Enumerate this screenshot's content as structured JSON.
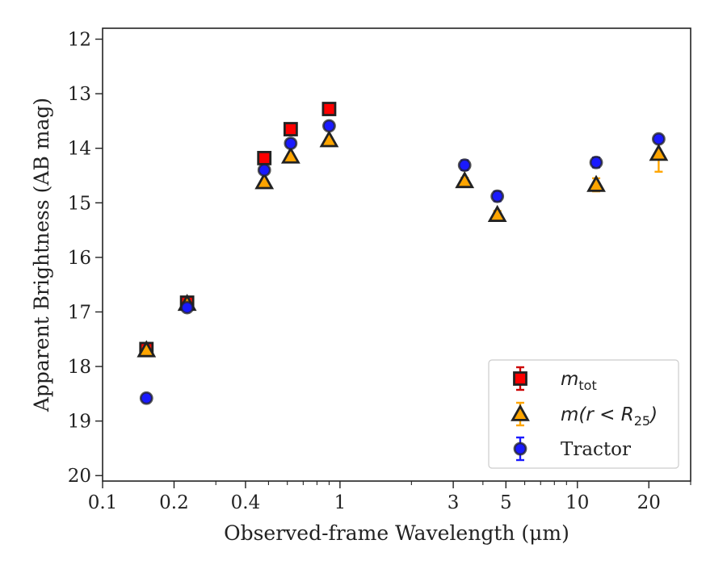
{
  "chart_data": {
    "type": "scatter",
    "xscale": "log",
    "xlim": [
      0.1,
      30
    ],
    "ylim": [
      20.1,
      11.8
    ],
    "y_inverted": true,
    "grid": false,
    "legend_position": "lower right",
    "xlabel": "Observed-frame Wavelength (μm)",
    "ylabel": "Apparent Brightness (AB mag)",
    "xtick_labels": [
      {
        "value": 0.1,
        "label": "0.1"
      },
      {
        "value": 0.2,
        "label": "0.2"
      },
      {
        "value": 0.4,
        "label": "0.4"
      },
      {
        "value": 1,
        "label": "1"
      },
      {
        "value": 3,
        "label": "3"
      },
      {
        "value": 5,
        "label": "5"
      },
      {
        "value": 10,
        "label": "10"
      },
      {
        "value": 20,
        "label": "20"
      }
    ],
    "ytick_labels": [
      {
        "value": 12,
        "label": "12"
      },
      {
        "value": 13,
        "label": "13"
      },
      {
        "value": 14,
        "label": "14"
      },
      {
        "value": 15,
        "label": "15"
      },
      {
        "value": 16,
        "label": "16"
      },
      {
        "value": 17,
        "label": "17"
      },
      {
        "value": 18,
        "label": "18"
      },
      {
        "value": 19,
        "label": "19"
      },
      {
        "value": 20,
        "label": "20"
      }
    ],
    "series": [
      {
        "name": "m_tot",
        "legend_main": "m",
        "legend_sub": "tot",
        "marker": "square",
        "color": "#ff0000",
        "error_color": "#cc0000",
        "points": [
          {
            "x": 0.153,
            "y": 17.68,
            "err": 0.05
          },
          {
            "x": 0.227,
            "y": 16.83,
            "err": 0.05
          },
          {
            "x": 0.48,
            "y": 14.18,
            "err": 0.03
          },
          {
            "x": 0.62,
            "y": 13.65,
            "err": 0.03
          },
          {
            "x": 0.9,
            "y": 13.28,
            "err": 0.03
          }
        ]
      },
      {
        "name": "m(r < R25)",
        "legend_main": "m(r < R",
        "legend_sub": "25",
        "legend_tail": ")",
        "marker": "triangle",
        "color": "#ffa500",
        "error_color": "#ffa500",
        "points": [
          {
            "x": 0.153,
            "y": 17.7,
            "err": 0.05
          },
          {
            "x": 0.227,
            "y": 16.85,
            "err": 0.05
          },
          {
            "x": 0.48,
            "y": 14.62,
            "err": 0.04
          },
          {
            "x": 0.62,
            "y": 14.15,
            "err": 0.04
          },
          {
            "x": 0.9,
            "y": 13.85,
            "err": 0.04
          },
          {
            "x": 3.35,
            "y": 14.6,
            "err": 0.06
          },
          {
            "x": 4.6,
            "y": 15.22,
            "err": 0.07
          },
          {
            "x": 12.0,
            "y": 14.67,
            "err": 0.12
          },
          {
            "x": 22.0,
            "y": 14.1,
            "err": 0.33
          }
        ]
      },
      {
        "name": "Tractor",
        "marker": "circle",
        "color": "#1a1aff",
        "error_color": "#1a1aff",
        "points": [
          {
            "x": 0.153,
            "y": 18.58,
            "err": 0.04
          },
          {
            "x": 0.227,
            "y": 16.92,
            "err": 0.04
          },
          {
            "x": 0.48,
            "y": 14.4,
            "err": 0.05
          },
          {
            "x": 0.62,
            "y": 13.91,
            "err": 0.05
          },
          {
            "x": 0.9,
            "y": 13.59,
            "err": 0.05
          },
          {
            "x": 3.35,
            "y": 14.31,
            "err": 0.09
          },
          {
            "x": 4.6,
            "y": 14.88,
            "err": 0.09
          },
          {
            "x": 12.0,
            "y": 14.26,
            "err": 0.09
          },
          {
            "x": 22.0,
            "y": 13.83,
            "err": 0.05
          }
        ]
      }
    ]
  }
}
